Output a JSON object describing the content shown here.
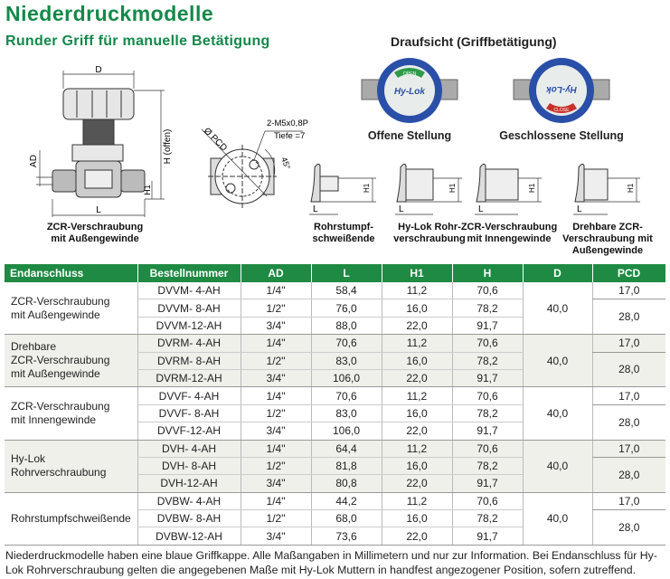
{
  "header": {
    "title": "Niederdruckmodelle",
    "subtitle": "Runder Griff für manuelle Betätigung"
  },
  "drawings": {
    "main_caption_1": "ZCR-Verschraubung",
    "main_caption_2": "mit Außengewinde",
    "dim_D": "D",
    "dim_H": "H (offen)",
    "dim_AD": "AD",
    "dim_L": "L",
    "dim_H1": "H1",
    "dim_PCD": "Ø PCD",
    "thread": "2-M5x0,8P",
    "depth": "Tiefe =7",
    "angle": "45°",
    "topview_title": "Draufsicht (Griffbetätigung)",
    "open_label": "Offene Stellung",
    "closed_label": "Geschlossene Stellung",
    "knob_brand": "Hy-Lok",
    "knob_open": "OPEN",
    "knob_close": "CLOSE",
    "ends": [
      {
        "line1": "Rohrstumpf-",
        "line2": "schweißende",
        "line3": ""
      },
      {
        "line1": "Hy-Lok Rohr-",
        "line2": "verschraubung",
        "line3": ""
      },
      {
        "line1": "ZCR-Verschraubung",
        "line2": "mit Innengewinde",
        "line3": ""
      },
      {
        "line1": "Drehbare ZCR-",
        "line2": "Verschraubung mit",
        "line3": "Außengewinde"
      }
    ]
  },
  "colors": {
    "brand_green": "#1f8a43",
    "knob_blue": "#2a4fa8",
    "open_green": "#2e9a4a",
    "close_red": "#c8302a"
  },
  "table": {
    "headers": [
      "Endanschluss",
      "Bestellnummer",
      "AD",
      "L",
      "H1",
      "H",
      "D",
      "PCD"
    ],
    "groups": [
      {
        "name": "ZCR-Verschraubung\nmit Außengewinde",
        "D": "40,0",
        "PCD": [
          "17,0",
          "28,0"
        ],
        "rows": [
          [
            "DVVM- 4-AH",
            "1/4\"",
            "58,4",
            "11,2",
            "70,6"
          ],
          [
            "DVVM- 8-AH",
            "1/2\"",
            "76,0",
            "16,0",
            "78,2"
          ],
          [
            "DVVM-12-AH",
            "3/4\"",
            "88,0",
            "22,0",
            "91,7"
          ]
        ]
      },
      {
        "name": "Drehbare\nZCR-Verschraubung\nmit Außengewinde",
        "D": "40,0",
        "PCD": [
          "17,0",
          "28,0"
        ],
        "rows": [
          [
            "DVRM- 4-AH",
            "1/4\"",
            "70,6",
            "11,2",
            "70,6"
          ],
          [
            "DVRM- 8-AH",
            "1/2\"",
            "83,0",
            "16,0",
            "78,2"
          ],
          [
            "DVRM-12-AH",
            "3/4\"",
            "106,0",
            "22,0",
            "91,7"
          ]
        ]
      },
      {
        "name": "ZCR-Verschraubung\nmit Innengewinde",
        "D": "40,0",
        "PCD": [
          "17,0",
          "28,0"
        ],
        "rows": [
          [
            "DVVF- 4-AH",
            "1/4\"",
            "70,6",
            "11,2",
            "70,6"
          ],
          [
            "DVVF- 8-AH",
            "1/2\"",
            "83,0",
            "16,0",
            "78,2"
          ],
          [
            "DVVF-12-AH",
            "3/4\"",
            "106,0",
            "22,0",
            "91,7"
          ]
        ]
      },
      {
        "name": "Hy-Lok Rohrverschraubung",
        "D": "40,0",
        "PCD": [
          "17,0",
          "28,0"
        ],
        "rows": [
          [
            "DVH- 4-AH",
            "1/4\"",
            "64,4",
            "11,2",
            "70,6"
          ],
          [
            "DVH- 8-AH",
            "1/2\"",
            "81,8",
            "16,0",
            "78,2"
          ],
          [
            "DVH-12-AH",
            "3/4\"",
            "80,8",
            "22,0",
            "91,7"
          ]
        ]
      },
      {
        "name": "Rohrstumpfschweißende",
        "D": "40,0",
        "PCD": [
          "17,0",
          "28,0"
        ],
        "rows": [
          [
            "DVBW- 4-AH",
            "1/4\"",
            "44,2",
            "11,2",
            "70,6"
          ],
          [
            "DVBW- 8-AH",
            "1/2\"",
            "68,0",
            "16,0",
            "78,2"
          ],
          [
            "DVBW-12-AH",
            "3/4\"",
            "73,6",
            "22,0",
            "91,7"
          ]
        ]
      }
    ]
  },
  "footnote": "Niederdruckmodelle haben eine blaue Griffkappe. Alle Maßangaben in Millimetern und nur zur Information. Bei Endanschluss für Hy-Lok Rohrverschraubung gelten die angegebenen Maße mit Hy-Lok Muttern in handfest angezogener Position, sofern zutreffend."
}
